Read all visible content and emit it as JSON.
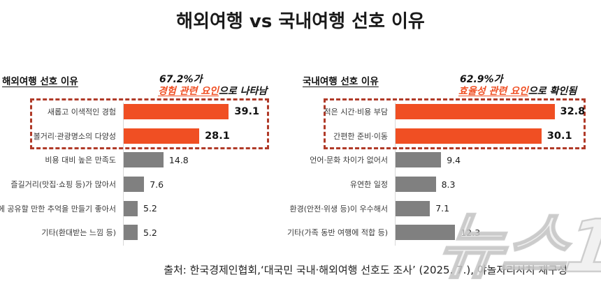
{
  "page_title": "해외여행 vs 국내여행 선호 이유",
  "source_line": "출처: 한국경제인협회,‘대국민 국내·해외여행 선호도 조사’ (2025. 7.), 야놀자리서치 재구성",
  "watermark_text": "뉴스1",
  "colors": {
    "highlight_bar": "#f04f23",
    "muted_bar": "#808080",
    "box_border": "#b03a28",
    "annotation_highlight": "#f04f23",
    "axis_line": "#d8d8d8"
  },
  "chart_data": [
    {
      "type": "bar",
      "orientation": "horizontal",
      "title": "해외여행 선호 이유",
      "annotation": {
        "line1": "67.2%가",
        "highlight": "경험 관련 요인",
        "suffix": "으로 나타남"
      },
      "categories": [
        "새롭고 이색적인 경험",
        "볼거리·관광명소의 다양성",
        "비용 대비 높은 만족도",
        "즐길거리(맛집·쇼핑 등)가 많아서",
        "SNS에 공유할 만한 추억을 만들기 좋아서",
        "기타(환대받는 느낌 등)"
      ],
      "values": [
        39.1,
        28.1,
        14.8,
        7.6,
        5.2,
        5.2
      ],
      "highlighted_bars": 2,
      "xmax": 52,
      "grid": false,
      "value_labels": true,
      "legend": "none"
    },
    {
      "type": "bar",
      "orientation": "horizontal",
      "title": "국내여행 선호 이유",
      "annotation": {
        "line1": "62.9%가",
        "highlight": "효율성 관련 요인",
        "suffix": "으로 확인됨"
      },
      "categories": [
        "적은 시간·비용 부담",
        "간편한 준비·이동",
        "언어·문화 차이가 없어서",
        "유연한 일정",
        "환경(안전·위생 등)이 우수해서",
        "기타(가족 동반 여행에 적합 등)"
      ],
      "values": [
        32.8,
        30.1,
        9.4,
        8.3,
        7.1,
        12.3
      ],
      "highlighted_bars": 2,
      "xmax": 34.6,
      "grid": false,
      "value_labels": true,
      "legend": "none"
    }
  ]
}
